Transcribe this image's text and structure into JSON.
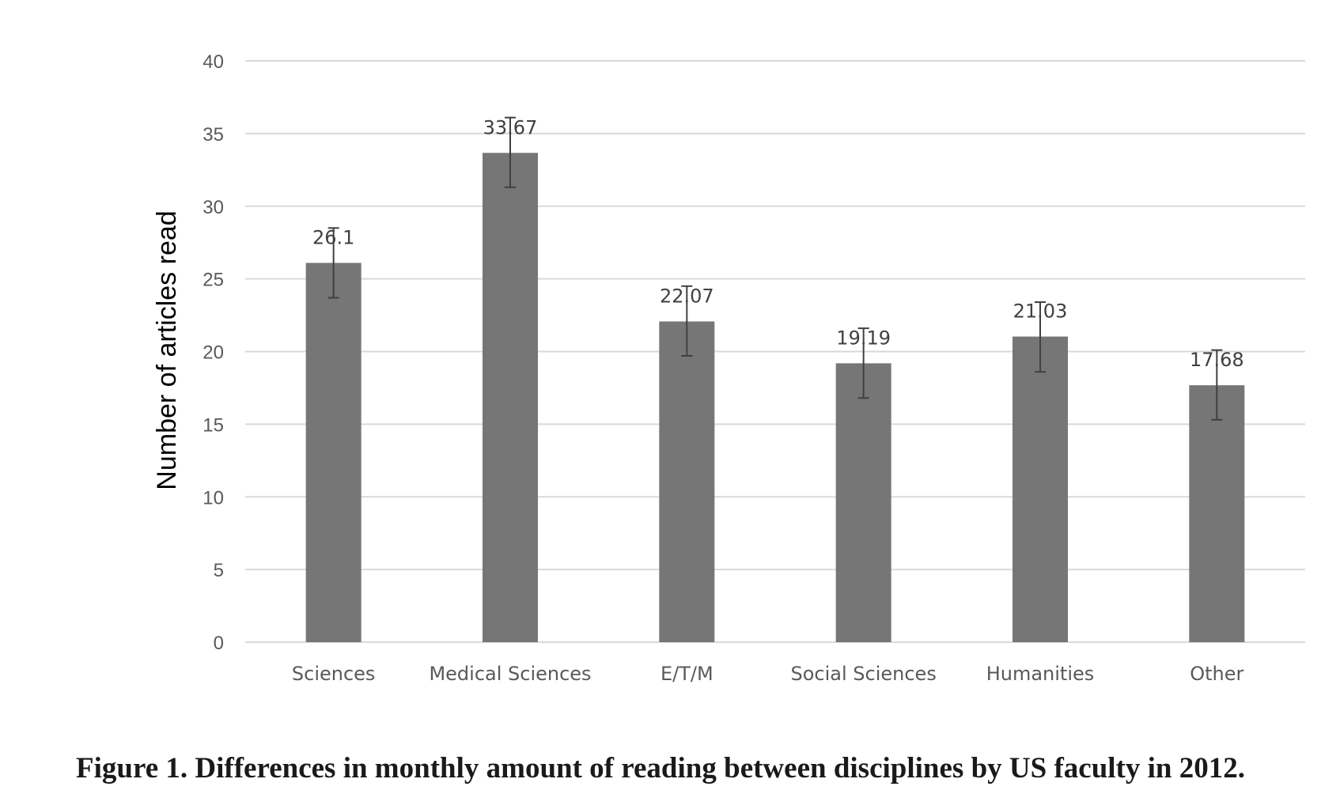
{
  "colors": {
    "bar": "#767676",
    "gridline": "#d9d9d9",
    "error_bar": "#404040",
    "tick_text": "#595959"
  },
  "chart_data": {
    "type": "bar",
    "title": "",
    "xlabel": "",
    "ylabel": "Number of articles read",
    "categories": [
      "Sciences",
      "Medical Sciences",
      "E/T/M",
      "Social Sciences",
      "Humanities",
      "Other"
    ],
    "values": [
      26.1,
      33.67,
      22.07,
      19.19,
      21.03,
      17.68
    ],
    "value_labels": [
      "26.1",
      "33.67",
      "22.07",
      "19.19",
      "21.03",
      "17.68"
    ],
    "error_bars": [
      {
        "low": 23.7,
        "high": 28.5
      },
      {
        "low": 31.3,
        "high": 36.1
      },
      {
        "low": 19.7,
        "high": 24.5
      },
      {
        "low": 16.8,
        "high": 21.6
      },
      {
        "low": 18.6,
        "high": 23.4
      },
      {
        "low": 15.3,
        "high": 20.1
      }
    ],
    "ylim": [
      0,
      40
    ],
    "yticks": [
      0,
      5,
      10,
      15,
      20,
      25,
      30,
      35,
      40
    ],
    "grid": true,
    "legend": "none"
  },
  "caption": "Figure 1. Differences in monthly amount of reading between disciplines by US faculty in 2012."
}
